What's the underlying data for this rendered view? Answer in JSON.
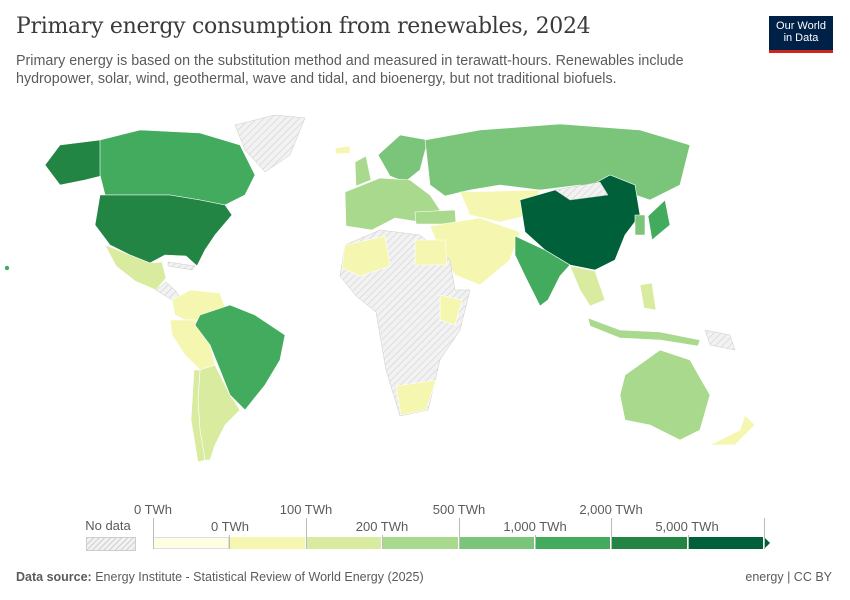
{
  "title": "Primary energy consumption from renewables, 2024",
  "subtitle": "Primary energy is based on the substitution method and measured in terawatt-hours. Renewables include hydropower, solar, wind, geothermal, wave and tidal, and bioenergy, but not traditional biofuels.",
  "logo": {
    "line1": "Our World",
    "line2": "in Data",
    "bg": "#002147",
    "accent": "#ce261e"
  },
  "legend": {
    "no_data": "No data",
    "top_labels": [
      "0 TWh",
      "100 TWh",
      "500 TWh",
      "2,000 TWh"
    ],
    "bottom_labels": [
      "0 TWh",
      "200 TWh",
      "1,000 TWh",
      "5,000 TWh"
    ],
    "colors": [
      "#fefee3",
      "#f5f7b0",
      "#d9eb9e",
      "#a8d98c",
      "#7ac57a",
      "#42ab5d",
      "#238544",
      "#00603a"
    ]
  },
  "footer": {
    "source_label": "Data source:",
    "source": "Energy Institute - Statistical Review of World Energy (2025)",
    "right": "energy | CC BY"
  }
}
